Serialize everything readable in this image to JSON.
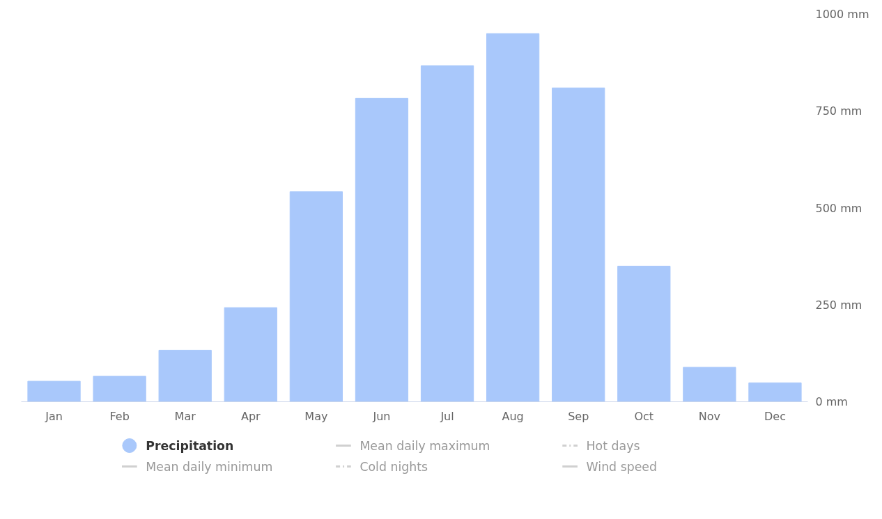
{
  "chart_data": {
    "type": "bar",
    "categories": [
      "Jan",
      "Feb",
      "Mar",
      "Apr",
      "May",
      "Jun",
      "Jul",
      "Aug",
      "Sep",
      "Oct",
      "Nov",
      "Dec"
    ],
    "series": [
      {
        "name": "Precipitation",
        "color": "#a9c8fb",
        "values": [
          53,
          66,
          133,
          243,
          542,
          783,
          867,
          950,
          810,
          350,
          89,
          49
        ]
      },
      {
        "name": "Mean daily maximum",
        "type": "line",
        "color": "#d0d0d0",
        "values": [
          null,
          null,
          null,
          null,
          null,
          null,
          null,
          null,
          null,
          null,
          null,
          null
        ]
      },
      {
        "name": "Hot days",
        "type": "line",
        "line_style": "dashed",
        "color": "#d0d0d0",
        "values": [
          null,
          null,
          null,
          null,
          null,
          null,
          null,
          null,
          null,
          null,
          null,
          null
        ]
      },
      {
        "name": "Mean daily minimum",
        "type": "line",
        "color": "#d0d0d0",
        "values": [
          null,
          null,
          null,
          null,
          null,
          null,
          null,
          null,
          null,
          null,
          null,
          null
        ]
      },
      {
        "name": "Cold nights",
        "type": "line",
        "line_style": "dashed",
        "color": "#d0d0d0",
        "values": [
          null,
          null,
          null,
          null,
          null,
          null,
          null,
          null,
          null,
          null,
          null,
          null
        ]
      },
      {
        "name": "Wind speed",
        "type": "line",
        "color": "#d0d0d0",
        "values": [
          null,
          null,
          null,
          null,
          null,
          null,
          null,
          null,
          null,
          null,
          null,
          null
        ]
      }
    ],
    "ylim": [
      0,
      1000
    ],
    "yticks": [
      {
        "value": 0,
        "label": "0 mm"
      },
      {
        "value": 250,
        "label": "250 mm"
      },
      {
        "value": 500,
        "label": "500 mm"
      },
      {
        "value": 750,
        "label": "750 mm"
      },
      {
        "value": 1000,
        "label": "1000 mm"
      }
    ],
    "grid": false,
    "legend": "bottom"
  }
}
